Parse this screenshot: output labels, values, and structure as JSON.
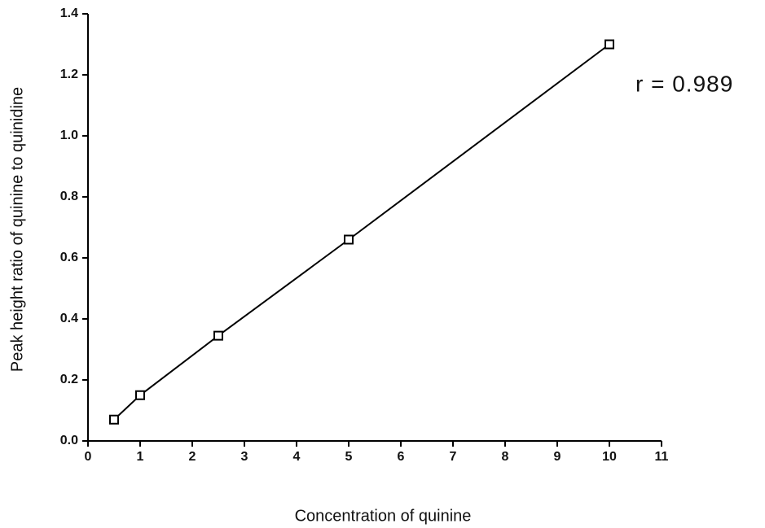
{
  "chart_data": {
    "type": "line",
    "x_label": "Concentration of quinine",
    "y_label": "Peak height ratio of quinine to quinidine",
    "annotation": "r = 0.989",
    "x": [
      0.5,
      1,
      2.5,
      5,
      10
    ],
    "values": [
      0.07,
      0.15,
      0.345,
      0.66,
      1.3
    ],
    "color": "#000000",
    "marker": "square",
    "xlim": [
      0,
      11
    ],
    "xticks": [
      0,
      1,
      2,
      3,
      4,
      5,
      6,
      7,
      8,
      9,
      10,
      11
    ],
    "ylim": [
      0,
      1.4
    ],
    "yticks": [
      {
        "value": 0,
        "label": "0.0"
      },
      0.2,
      0.4,
      0.6,
      0.8,
      {
        "value": 1,
        "label": "1.0"
      },
      1.2,
      1.4
    ],
    "grid": false
  }
}
